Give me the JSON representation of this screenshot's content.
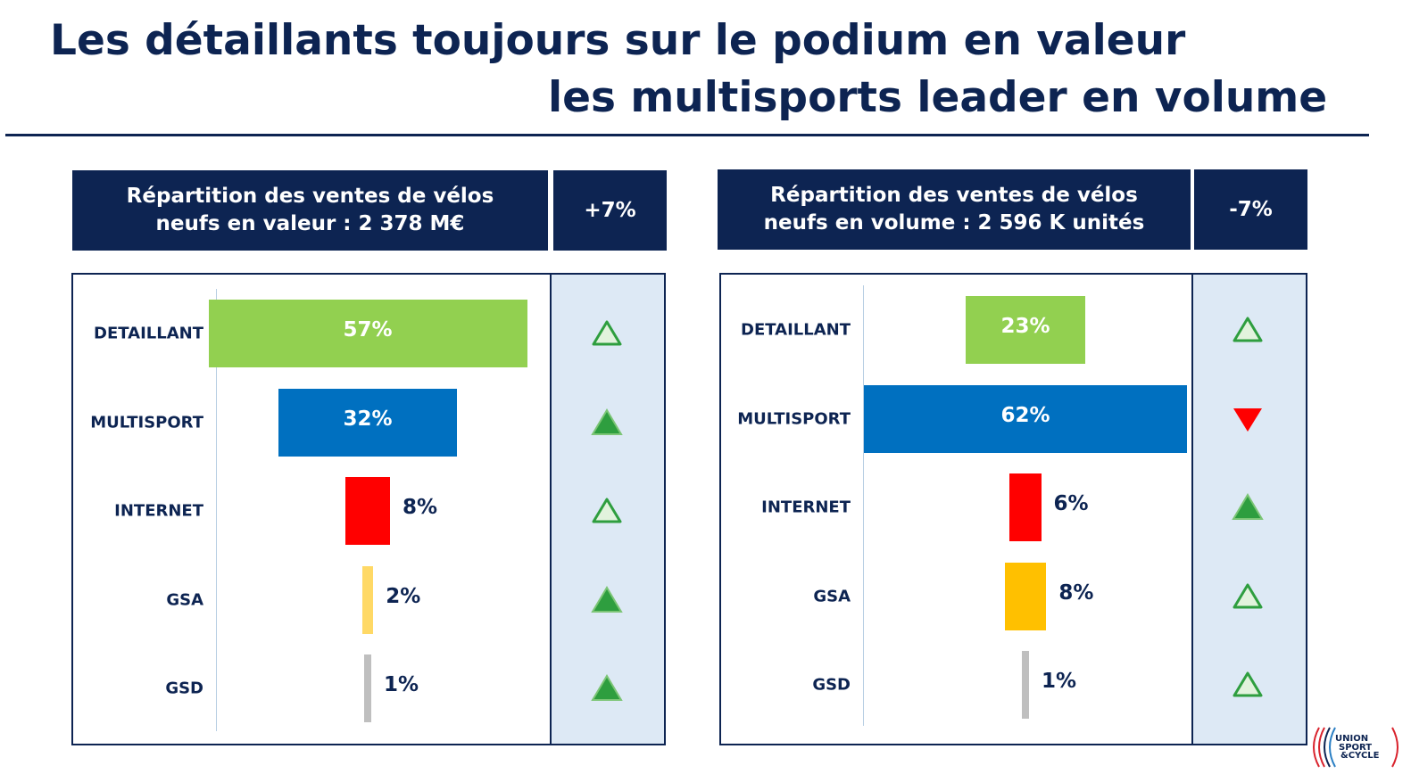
{
  "title": {
    "line1": "Les détaillants toujours sur le podium en valeur",
    "line2": "les multisports leader en volume"
  },
  "colors": {
    "navy": "#0d2452",
    "trend_bg": "#dde9f5",
    "up_green": "#2e9e3f",
    "up_light": "#e2f3dd",
    "down_red": "#ff0000"
  },
  "chart_data": [
    {
      "type": "bar",
      "orientation": "horizontal-centered",
      "title_line1": "Répartition des ventes de vélos",
      "title_line2": "neufs en valeur : 2 378 M€",
      "total_change": "+7%",
      "categories": [
        "DETAILLANT",
        "MULTISPORT",
        "INTERNET",
        "GSA",
        "GSD"
      ],
      "values": [
        57,
        32,
        8,
        2,
        1
      ],
      "labels": [
        "57%",
        "32%",
        "8%",
        "2%",
        "1%"
      ],
      "bar_colors": [
        "#92d050",
        "#0070c0",
        "#ff0000",
        "#ffd966",
        "#bfbfbf"
      ],
      "trends": [
        "up-outline",
        "up-filled",
        "up-outline",
        "up-filled",
        "up-filled"
      ]
    },
    {
      "type": "bar",
      "orientation": "horizontal-centered",
      "title_line1": "Répartition des ventes de vélos",
      "title_line2": "neufs en volume : 2 596 K unités",
      "total_change": "-7%",
      "categories": [
        "DETAILLANT",
        "MULTISPORT",
        "INTERNET",
        "GSA",
        "GSD"
      ],
      "values": [
        23,
        62,
        6,
        8,
        1
      ],
      "labels": [
        "23%",
        "62%",
        "6%",
        "8%",
        "1%"
      ],
      "bar_colors": [
        "#92d050",
        "#0070c0",
        "#ff0000",
        "#ffc000",
        "#bfbfbf"
      ],
      "trends": [
        "up-outline",
        "down-filled",
        "up-filled",
        "up-outline",
        "up-outline"
      ]
    }
  ],
  "logo": {
    "line1": "UNION",
    "line2": "SPORT",
    "line3": "&CYCLE"
  }
}
